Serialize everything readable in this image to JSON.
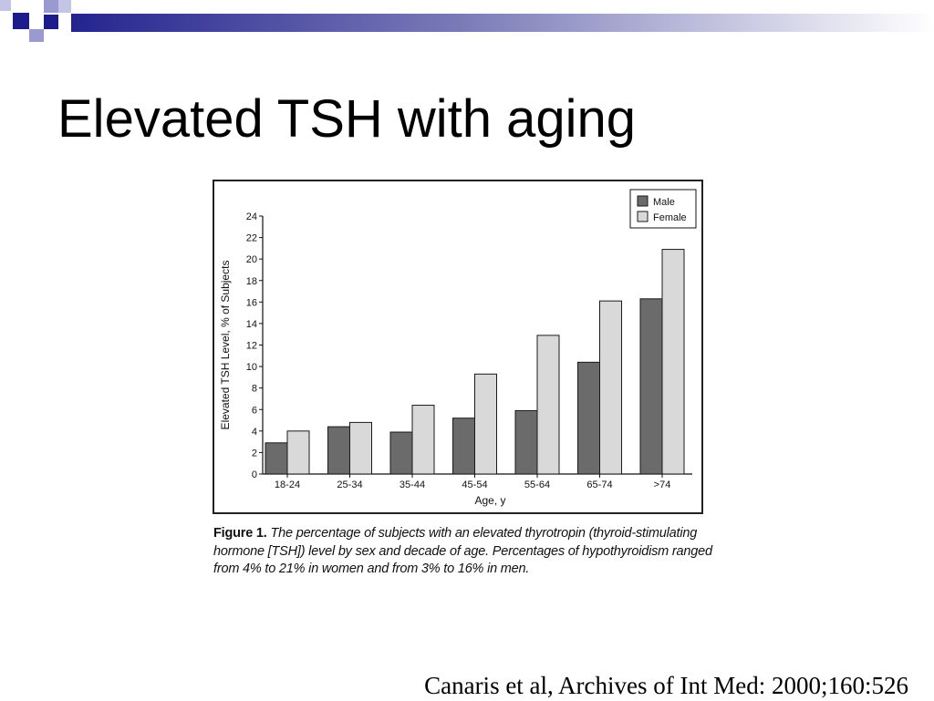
{
  "slide": {
    "title": "Elevated TSH with aging",
    "citation": "Canaris et al, Archives of Int Med:  2000;160:526"
  },
  "figure": {
    "label": "Figure 1.",
    "caption": "The percentage of subjects with an elevated thyrotropin (thyroid-stimulating hormone [TSH]) level by sex and decade of age. Percentages of hypothyroidism ranged from 4% to 21% in women and from 3% to 16% in men."
  },
  "colors": {
    "male": "#6b6b6b",
    "female": "#d9d9d9",
    "bar_stroke": "#1a1a1a",
    "band_dark": "#1c1c8c",
    "band_light": "#ffffff"
  },
  "chart_data": {
    "type": "bar",
    "xlabel": "Age, y",
    "ylabel": "Elevated TSH Level, % of Subjects",
    "ylim": [
      0,
      24
    ],
    "yticks": [
      0,
      2,
      4,
      6,
      8,
      10,
      12,
      14,
      16,
      18,
      20,
      22,
      24
    ],
    "categories": [
      "18-24",
      "25-34",
      "35-44",
      "45-54",
      "55-64",
      "65-74",
      ">74"
    ],
    "series": [
      {
        "name": "Male",
        "values": [
          2.9,
          4.4,
          3.9,
          5.2,
          5.9,
          10.4,
          16.3
        ]
      },
      {
        "name": "Female",
        "values": [
          4.0,
          4.8,
          6.4,
          9.3,
          12.9,
          16.1,
          20.9
        ]
      }
    ],
    "legend_position": "top-right",
    "grid": false
  }
}
